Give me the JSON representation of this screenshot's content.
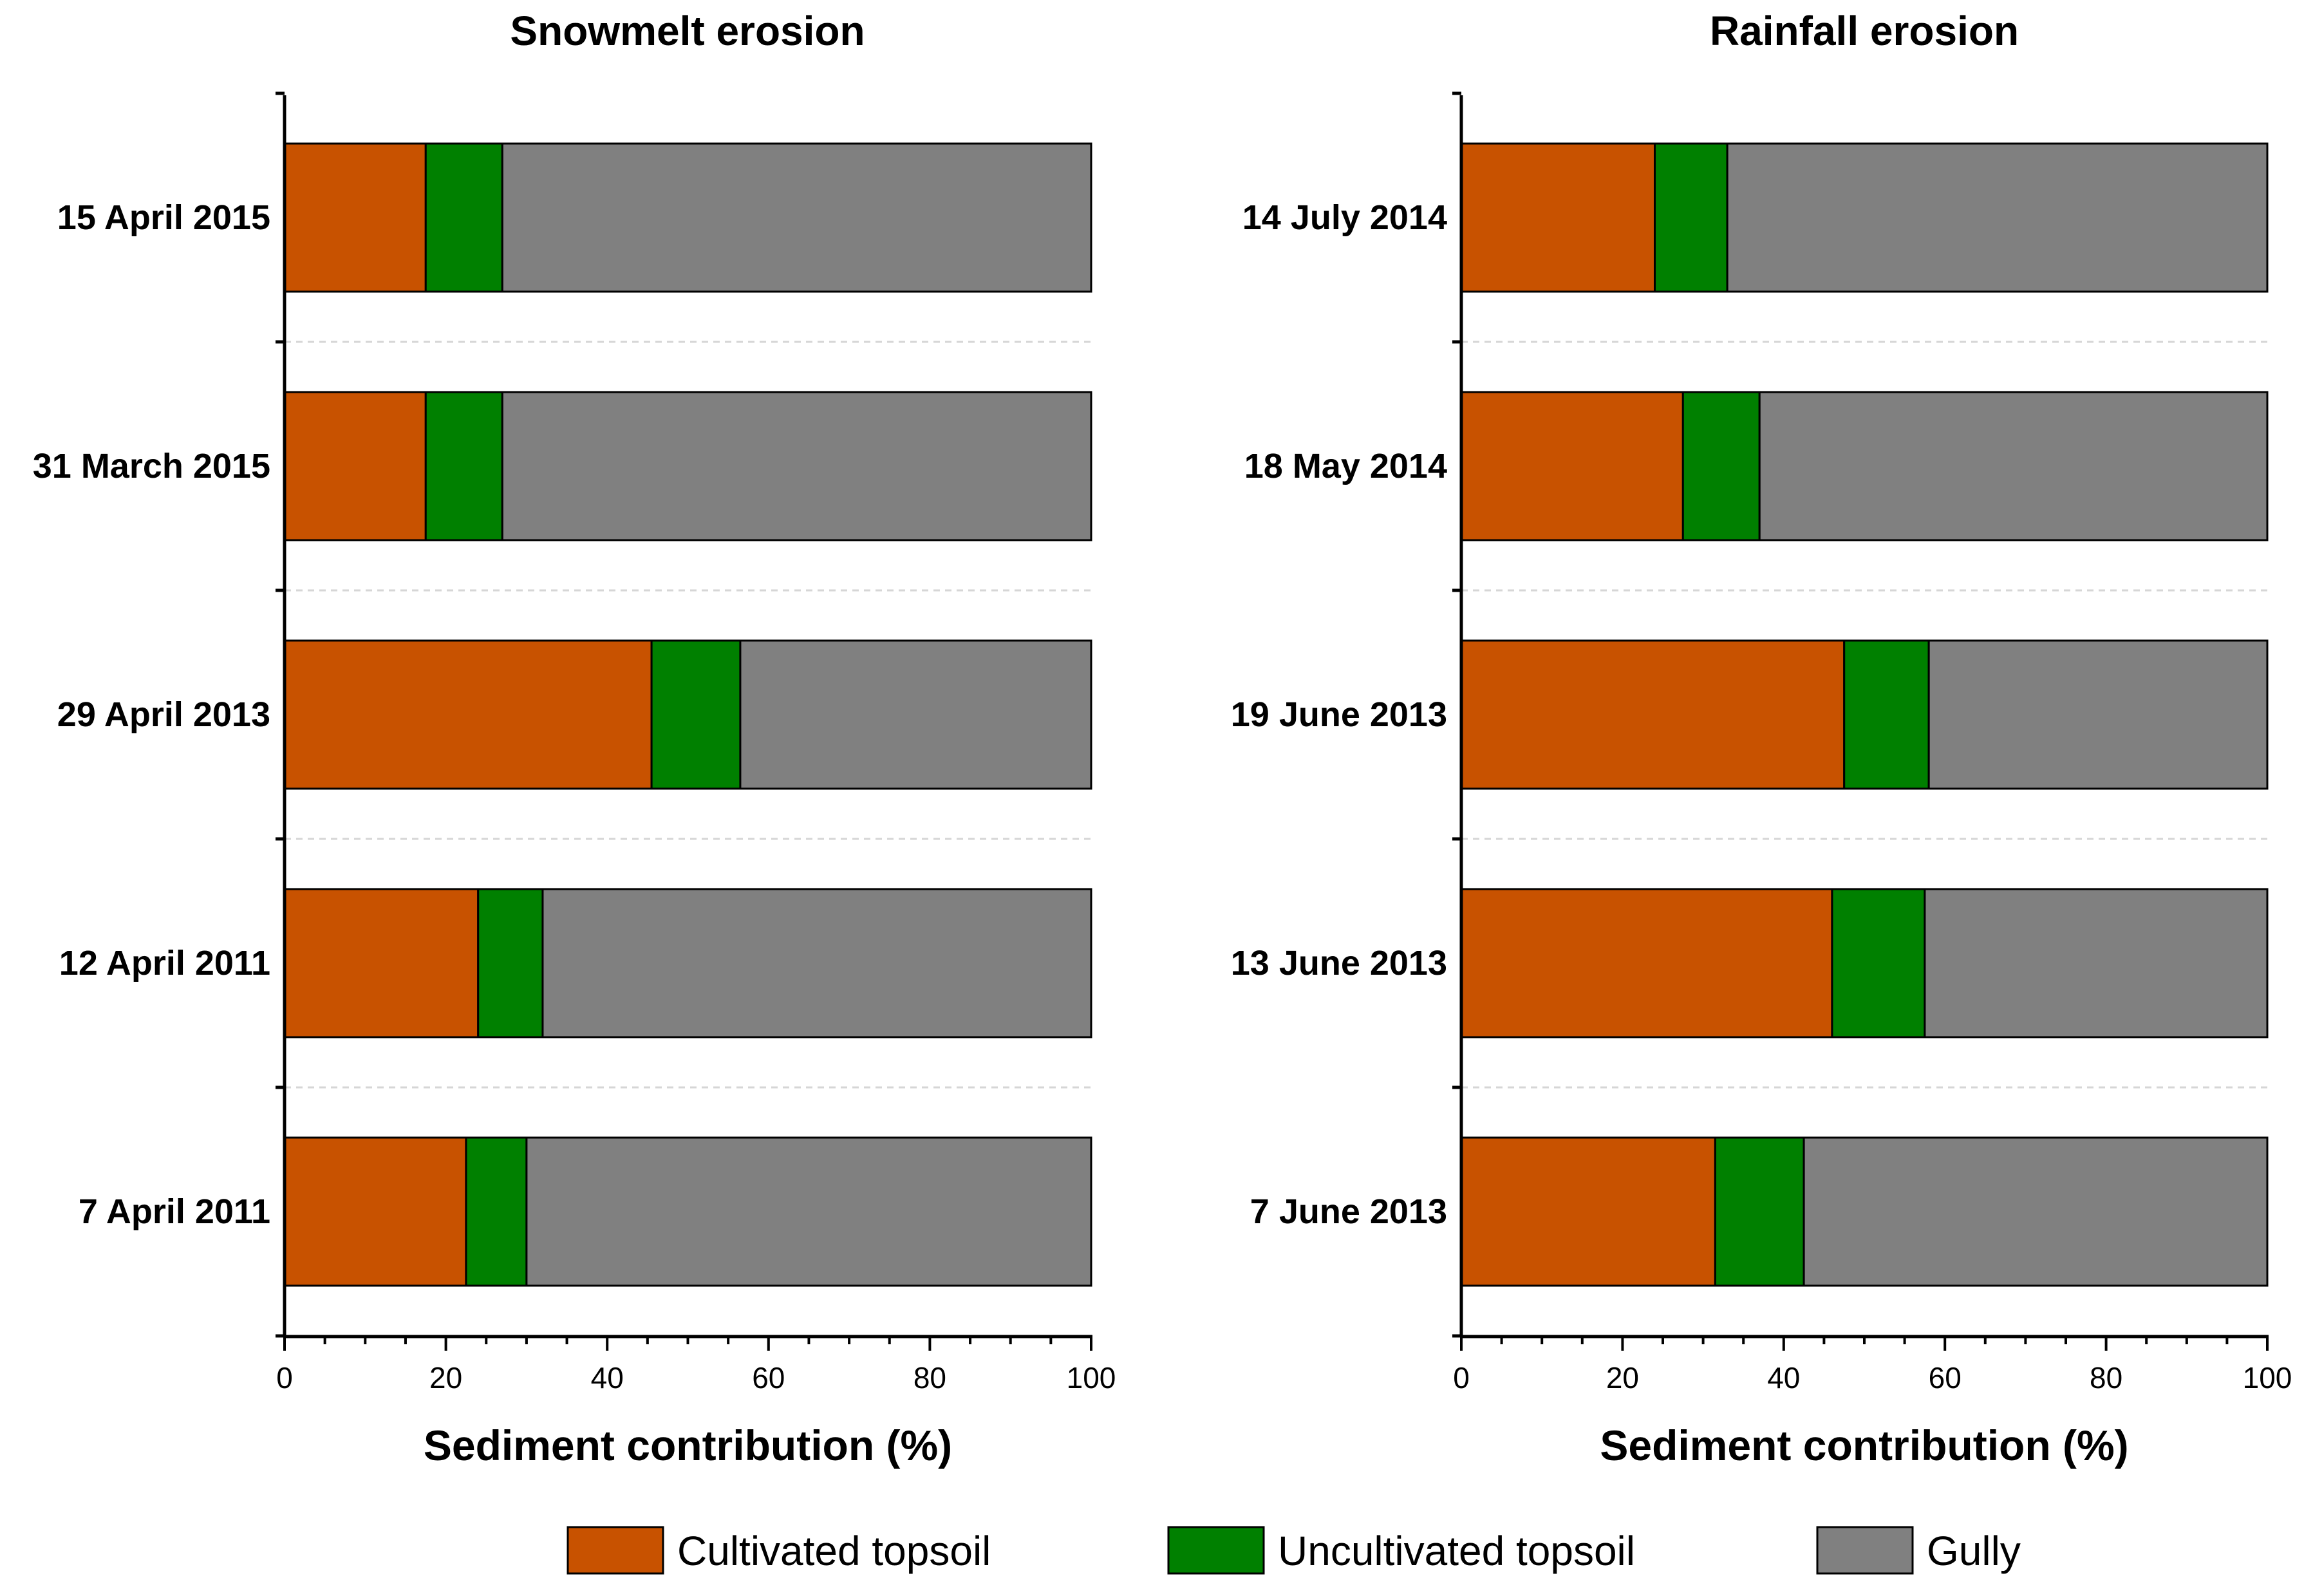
{
  "chart_data": [
    {
      "type": "bar",
      "orientation": "horizontal",
      "stacked": true,
      "title": "Snowmelt erosion",
      "xlabel": "Sediment contribution (%)",
      "ylabel": "",
      "xlim": [
        0,
        100
      ],
      "xticks": [
        "0",
        "20",
        "40",
        "60",
        "80",
        "100"
      ],
      "categories": [
        "15 April 2015",
        "31 March 2015",
        "29 April 2013",
        "12 April 2011",
        "7 April 2011"
      ],
      "series": [
        {
          "name": "Cultivated topsoil",
          "values": [
            17.5,
            17.5,
            45.5,
            24.0,
            22.5
          ]
        },
        {
          "name": "Uncultivated topsoil",
          "values": [
            9.5,
            9.5,
            11.0,
            8.0,
            7.5
          ]
        },
        {
          "name": "Gully",
          "values": [
            73.0,
            73.0,
            43.5,
            68.0,
            70.0
          ]
        }
      ],
      "grid": "dashed horizontal separators"
    },
    {
      "type": "bar",
      "orientation": "horizontal",
      "stacked": true,
      "title": "Rainfall erosion",
      "xlabel": "Sediment contribution (%)",
      "ylabel": "",
      "xlim": [
        0,
        100
      ],
      "xticks": [
        "0",
        "20",
        "40",
        "60",
        "80",
        "100"
      ],
      "categories": [
        "14 July 2014",
        "18 May 2014",
        "19 June 2013",
        "13 June 2013",
        "7 June 2013"
      ],
      "series": [
        {
          "name": "Cultivated topsoil",
          "values": [
            24.0,
            27.5,
            47.5,
            46.0,
            31.5
          ]
        },
        {
          "name": "Uncultivated topsoil",
          "values": [
            9.0,
            9.5,
            10.5,
            11.5,
            11.0
          ]
        },
        {
          "name": "Gully",
          "values": [
            67.0,
            63.0,
            42.0,
            42.5,
            57.5
          ]
        }
      ],
      "grid": "dashed horizontal separators"
    }
  ],
  "legend": {
    "placement": "bottom",
    "items": [
      {
        "label": "Cultivated topsoil",
        "color": "#c85200"
      },
      {
        "label": "Uncultivated topsoil",
        "color": "#008000"
      },
      {
        "label": "Gully",
        "color": "#808080"
      }
    ]
  }
}
